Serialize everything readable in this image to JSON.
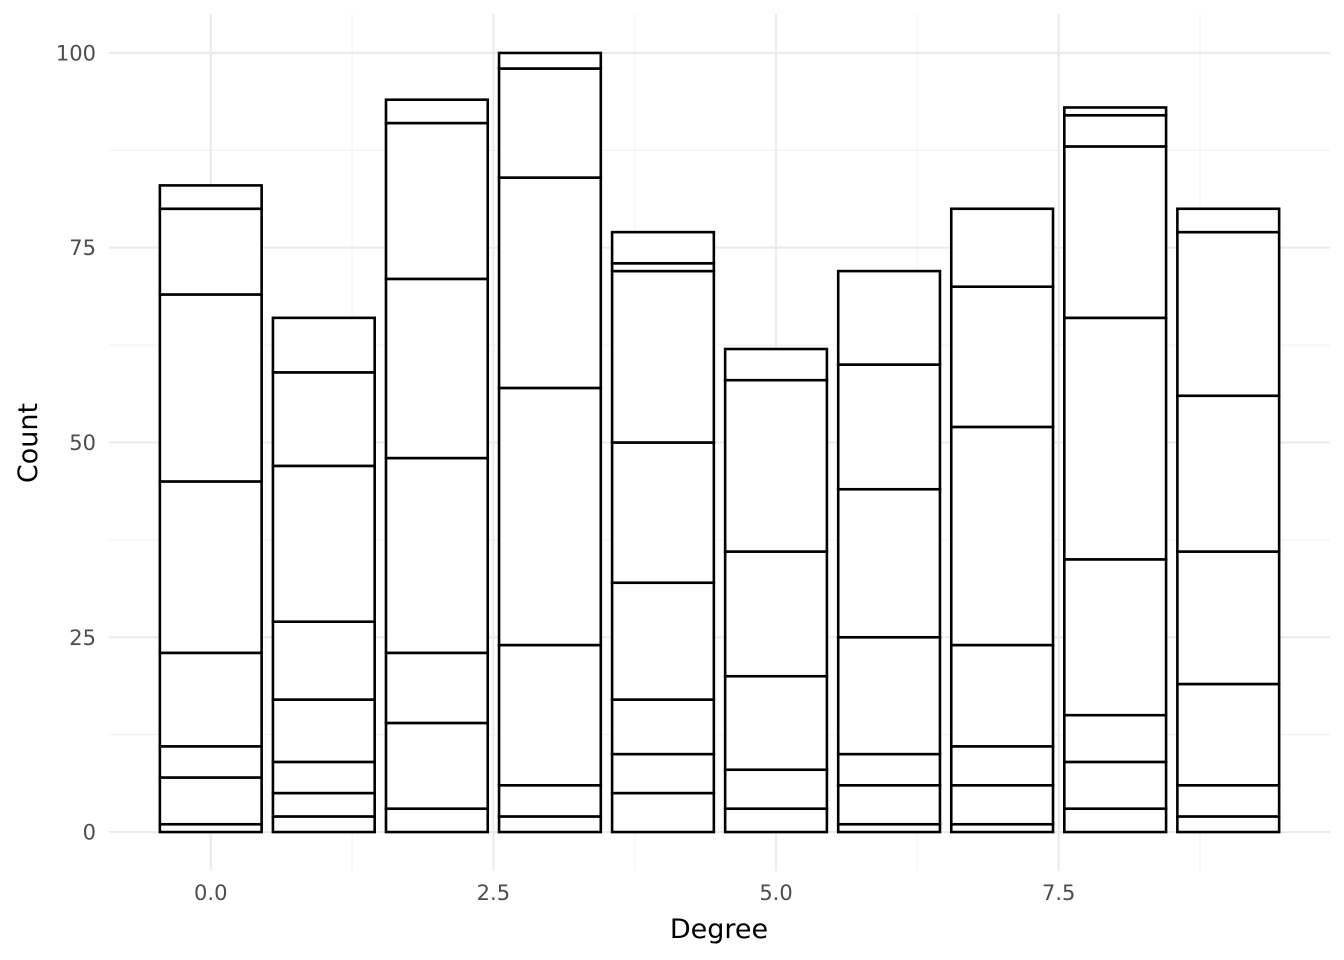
{
  "chart_data": {
    "type": "bar",
    "stacked": true,
    "title": "",
    "xlabel": "Degree",
    "ylabel": "Count",
    "x": [
      0,
      1,
      2,
      3,
      4,
      5,
      6,
      7,
      8,
      9
    ],
    "bar_width": 0.9,
    "xlim": [
      -0.9,
      9.9
    ],
    "ylim": [
      -5,
      105
    ],
    "x_ticks": [
      0,
      2.5,
      5,
      7.5
    ],
    "x_tick_labels": [
      "0.0",
      "2.5",
      "5.0",
      "7.5"
    ],
    "y_ticks": [
      0,
      25,
      50,
      75,
      100
    ],
    "y_tick_labels": [
      "0",
      "25",
      "50",
      "75",
      "100"
    ],
    "grid": true,
    "legend": "none",
    "fill_color": "#ffffff",
    "outline_color": "#000000",
    "cumulative_boundaries": [
      [
        1,
        7,
        11,
        23,
        45,
        69,
        80,
        83
      ],
      [
        2,
        5,
        9,
        17,
        27,
        47,
        59,
        66
      ],
      [
        3,
        14,
        23,
        48,
        71,
        91,
        94
      ],
      [
        2,
        6,
        24,
        57,
        84,
        98,
        100
      ],
      [
        5,
        10,
        17,
        32,
        50,
        72,
        73,
        77
      ],
      [
        3,
        8,
        20,
        36,
        58,
        62
      ],
      [
        1,
        6,
        10,
        25,
        44,
        60,
        72
      ],
      [
        1,
        6,
        11,
        24,
        52,
        70,
        80
      ],
      [
        3,
        9,
        15,
        35,
        66,
        88,
        92,
        93
      ],
      [
        2,
        6,
        19,
        36,
        56,
        77,
        80
      ]
    ],
    "totals": [
      83,
      66,
      94,
      100,
      77,
      62,
      72,
      80,
      93,
      80
    ]
  }
}
